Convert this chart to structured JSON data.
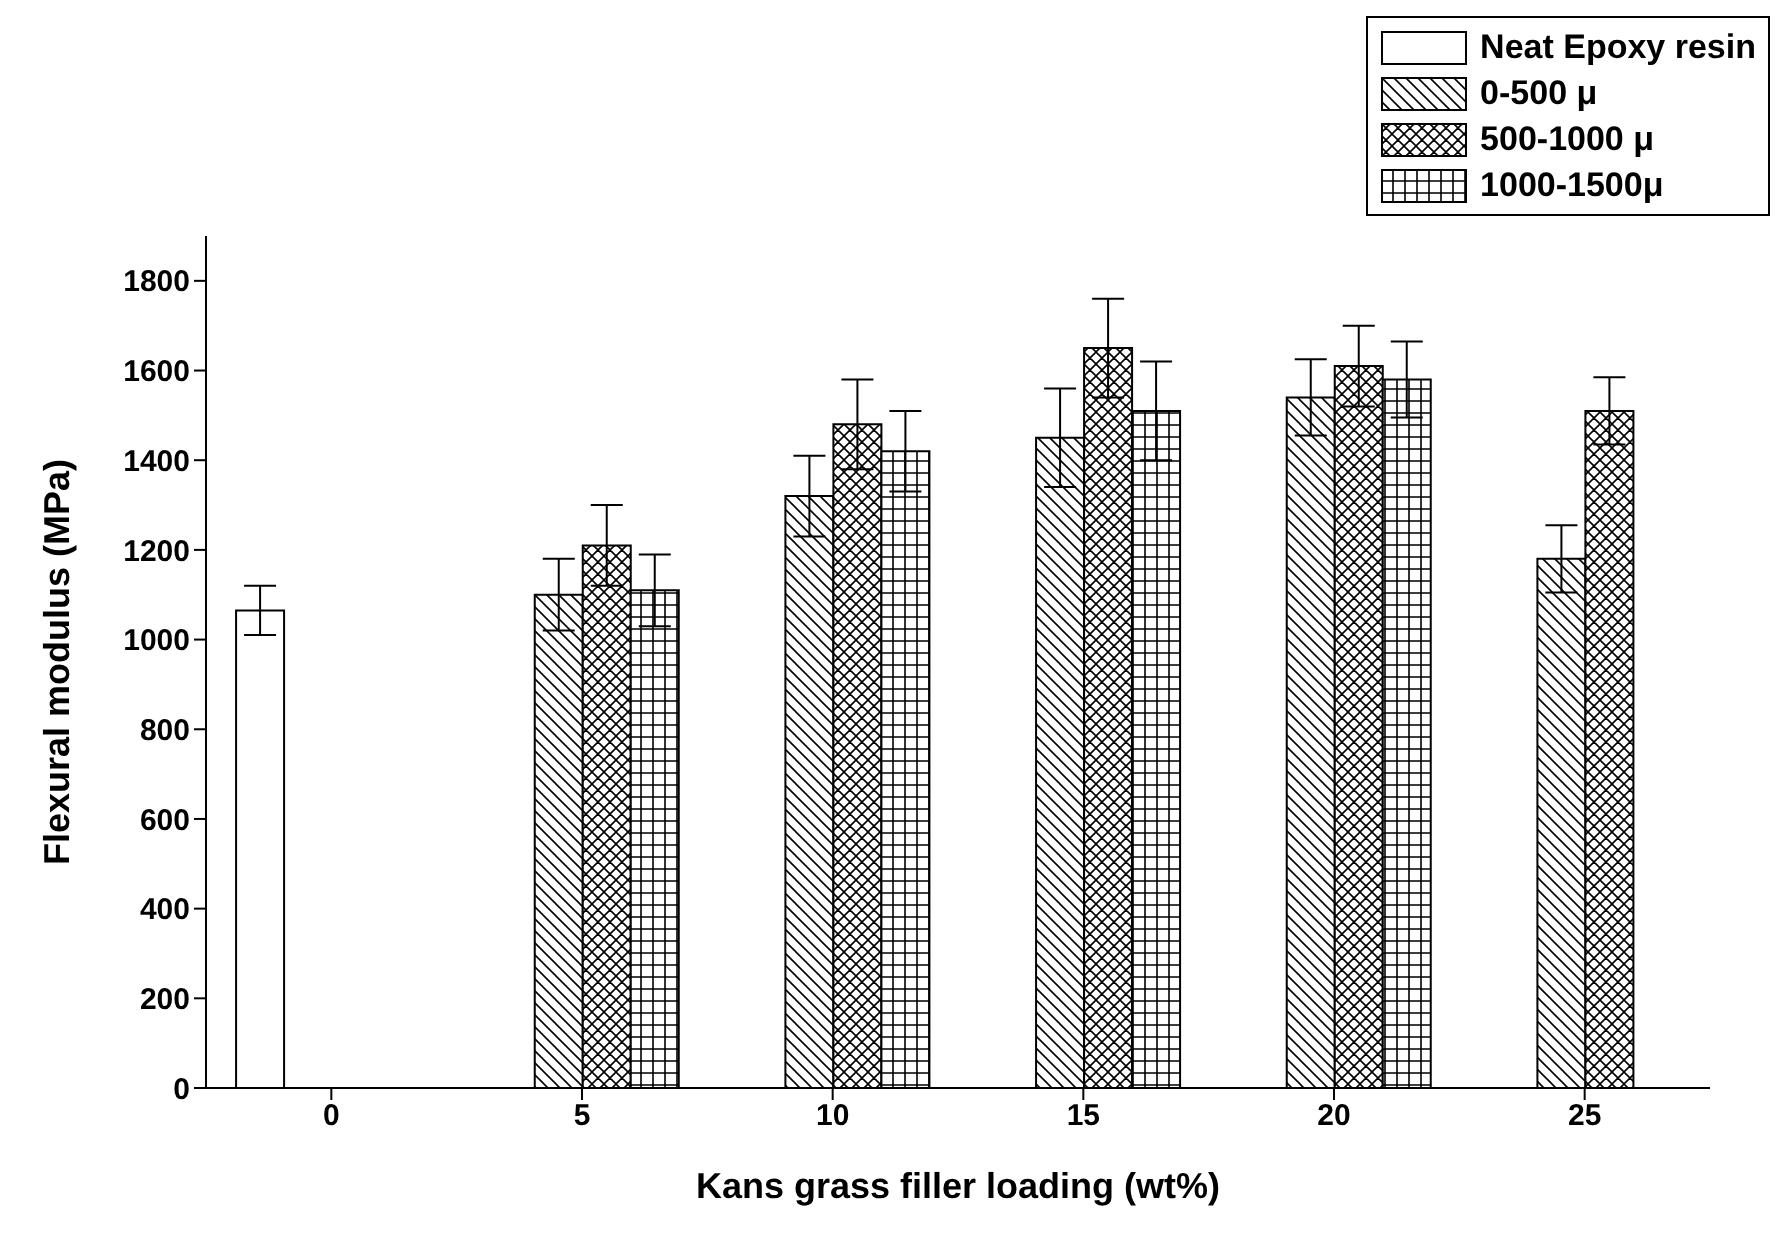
{
  "chart_data": {
    "type": "bar",
    "xlabel": "Kans grass filler loading (wt%)",
    "ylabel": "Flexural modulus (MPa)",
    "categories": [
      "0",
      "5",
      "10",
      "15",
      "20",
      "25"
    ],
    "series": [
      {
        "name": "Neat Epoxy resin",
        "color": "#000000",
        "values": [
          1065,
          null,
          null,
          null,
          null,
          null
        ],
        "errors": [
          55,
          null,
          null,
          null,
          null,
          null
        ]
      },
      {
        "name": "0-500 μ",
        "color": "#000000",
        "values": [
          null,
          1100,
          1320,
          1450,
          1540,
          1180
        ],
        "errors": [
          null,
          80,
          90,
          110,
          85,
          75
        ]
      },
      {
        "name": "500-1000 μ",
        "color": "#000000",
        "values": [
          null,
          1210,
          1480,
          1650,
          1610,
          1510
        ],
        "errors": [
          null,
          90,
          100,
          110,
          90,
          75
        ]
      },
      {
        "name": "1000-1500μ",
        "color": "#000000",
        "values": [
          null,
          1110,
          1420,
          1510,
          1580,
          null
        ],
        "errors": [
          null,
          80,
          90,
          110,
          85,
          null
        ]
      }
    ],
    "ylim": [
      0,
      1900
    ],
    "yticks": [
      0,
      200,
      400,
      600,
      800,
      1000,
      1200,
      1400,
      1600,
      1800
    ],
    "grid": false,
    "legend": "top right"
  }
}
